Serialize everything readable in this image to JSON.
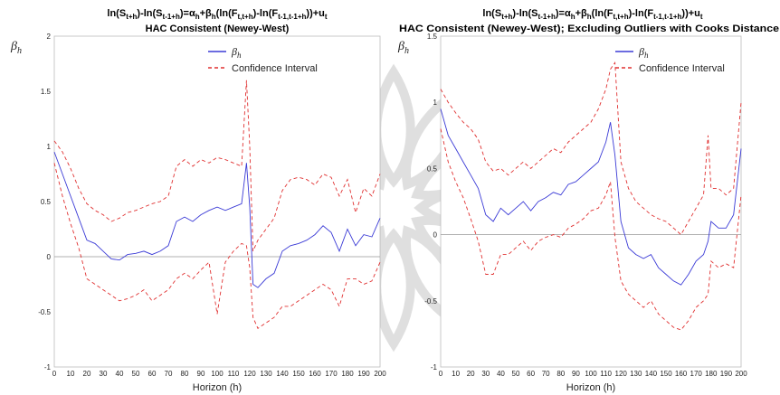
{
  "chart_data": [
    {
      "type": "line",
      "title_line1": "ln(S_{t+h})-ln(S_{t-1+h})=α_h+β_h(ln(F_{t,t+h})-ln(F_{t-1,t-1+h}))+u_t",
      "title_line2": "HAC Consistent (Newey-West)",
      "xlabel": "Horizon (h)",
      "ylabel": "β_h",
      "xlim": [
        0,
        200
      ],
      "ylim": [
        -1,
        2
      ],
      "xticks": [
        0,
        10,
        20,
        30,
        40,
        50,
        60,
        70,
        80,
        90,
        100,
        110,
        120,
        130,
        140,
        150,
        160,
        170,
        180,
        190,
        200
      ],
      "yticks": [
        -1,
        -0.5,
        0,
        0.5,
        1,
        1.5,
        2
      ],
      "legend": [
        "β_h",
        "Confidence Interval"
      ],
      "legend_position": "top-right",
      "colors": {
        "beta": "#3b3bd6",
        "ci": "#e03030",
        "zero": "#999999"
      },
      "x": [
        0,
        5,
        10,
        15,
        20,
        25,
        30,
        35,
        40,
        45,
        50,
        55,
        60,
        65,
        70,
        75,
        80,
        85,
        90,
        95,
        100,
        105,
        110,
        115,
        118,
        120,
        122,
        125,
        130,
        135,
        140,
        145,
        150,
        155,
        160,
        165,
        170,
        175,
        180,
        185,
        190,
        195,
        200
      ],
      "series": [
        {
          "name": "β_h",
          "values": [
            0.95,
            0.75,
            0.55,
            0.35,
            0.15,
            0.12,
            0.05,
            -0.02,
            -0.03,
            0.02,
            0.03,
            0.05,
            0.02,
            0.05,
            0.1,
            0.32,
            0.36,
            0.32,
            0.38,
            0.42,
            0.45,
            0.42,
            0.45,
            0.48,
            0.85,
            0.45,
            -0.25,
            -0.28,
            -0.2,
            -0.15,
            0.05,
            0.1,
            0.12,
            0.15,
            0.2,
            0.28,
            0.22,
            0.05,
            0.25,
            0.1,
            0.2,
            0.18,
            0.35
          ]
        },
        {
          "name": "CI upper",
          "values": [
            1.05,
            0.95,
            0.8,
            0.62,
            0.48,
            0.42,
            0.38,
            0.32,
            0.35,
            0.4,
            0.42,
            0.45,
            0.48,
            0.5,
            0.55,
            0.82,
            0.88,
            0.82,
            0.88,
            0.85,
            0.9,
            0.88,
            0.85,
            0.82,
            1.6,
            1.0,
            0.05,
            0.15,
            0.25,
            0.35,
            0.6,
            0.7,
            0.72,
            0.7,
            0.65,
            0.75,
            0.72,
            0.55,
            0.7,
            0.4,
            0.62,
            0.55,
            0.75
          ]
        },
        {
          "name": "CI lower",
          "values": [
            0.85,
            0.55,
            0.3,
            0.08,
            -0.2,
            -0.25,
            -0.3,
            -0.35,
            -0.4,
            -0.38,
            -0.35,
            -0.3,
            -0.4,
            -0.35,
            -0.3,
            -0.2,
            -0.15,
            -0.2,
            -0.12,
            -0.05,
            -0.52,
            -0.05,
            0.05,
            0.12,
            0.1,
            -0.1,
            -0.55,
            -0.65,
            -0.6,
            -0.55,
            -0.45,
            -0.45,
            -0.4,
            -0.35,
            -0.3,
            -0.25,
            -0.3,
            -0.45,
            -0.2,
            -0.2,
            -0.25,
            -0.22,
            -0.05
          ]
        }
      ]
    },
    {
      "type": "line",
      "title_line1": "ln(S_{t+h})-ln(S_{t-1+h})=α_h+β_h(ln(F_{t,t+h})-ln(F_{t-1,t-1+h}))+u_t",
      "title_line2": "HAC Consistent (Newey-West); Excluding Outliers with Cooks Distance",
      "xlabel": "Horizon (h)",
      "ylabel": "β_h",
      "xlim": [
        0,
        200
      ],
      "ylim": [
        -1,
        1.5
      ],
      "xticks": [
        0,
        10,
        20,
        30,
        40,
        50,
        60,
        70,
        80,
        90,
        100,
        110,
        120,
        130,
        140,
        150,
        160,
        170,
        180,
        190,
        200
      ],
      "yticks": [
        -1,
        -0.5,
        0,
        0.5,
        1,
        1.5
      ],
      "legend": [
        "β_h",
        "Confidence Interval"
      ],
      "legend_position": "top-right",
      "colors": {
        "beta": "#3b3bd6",
        "ci": "#e03030",
        "zero": "#999999"
      },
      "x": [
        0,
        5,
        10,
        15,
        20,
        25,
        30,
        35,
        40,
        45,
        50,
        55,
        60,
        65,
        70,
        75,
        80,
        85,
        90,
        95,
        100,
        105,
        110,
        113,
        116,
        120,
        125,
        130,
        135,
        140,
        145,
        150,
        155,
        160,
        165,
        170,
        175,
        178,
        180,
        185,
        190,
        195,
        200
      ],
      "series": [
        {
          "name": "β_h",
          "values": [
            0.95,
            0.75,
            0.65,
            0.55,
            0.45,
            0.35,
            0.15,
            0.1,
            0.2,
            0.15,
            0.2,
            0.25,
            0.18,
            0.25,
            0.28,
            0.32,
            0.3,
            0.38,
            0.4,
            0.45,
            0.5,
            0.55,
            0.7,
            0.85,
            0.6,
            0.1,
            -0.1,
            -0.15,
            -0.18,
            -0.15,
            -0.25,
            -0.3,
            -0.35,
            -0.38,
            -0.3,
            -0.2,
            -0.15,
            -0.05,
            0.1,
            0.05,
            0.05,
            0.15,
            0.65
          ]
        },
        {
          "name": "CI upper",
          "values": [
            1.1,
            1.0,
            0.92,
            0.85,
            0.8,
            0.72,
            0.55,
            0.48,
            0.5,
            0.45,
            0.5,
            0.55,
            0.5,
            0.55,
            0.6,
            0.65,
            0.62,
            0.7,
            0.75,
            0.8,
            0.85,
            0.95,
            1.1,
            1.25,
            1.3,
            0.55,
            0.35,
            0.25,
            0.2,
            0.15,
            0.12,
            0.1,
            0.05,
            0.0,
            0.1,
            0.2,
            0.3,
            0.75,
            0.35,
            0.35,
            0.3,
            0.35,
            1.0
          ]
        },
        {
          "name": "CI lower",
          "values": [
            0.8,
            0.55,
            0.4,
            0.28,
            0.12,
            -0.05,
            -0.3,
            -0.3,
            -0.15,
            -0.15,
            -0.1,
            -0.05,
            -0.12,
            -0.05,
            -0.02,
            0.0,
            -0.02,
            0.05,
            0.08,
            0.12,
            0.18,
            0.2,
            0.3,
            0.4,
            -0.02,
            -0.35,
            -0.45,
            -0.5,
            -0.55,
            -0.5,
            -0.6,
            -0.65,
            -0.7,
            -0.72,
            -0.65,
            -0.55,
            -0.5,
            -0.45,
            -0.2,
            -0.25,
            -0.22,
            -0.25,
            0.3
          ]
        }
      ]
    }
  ]
}
